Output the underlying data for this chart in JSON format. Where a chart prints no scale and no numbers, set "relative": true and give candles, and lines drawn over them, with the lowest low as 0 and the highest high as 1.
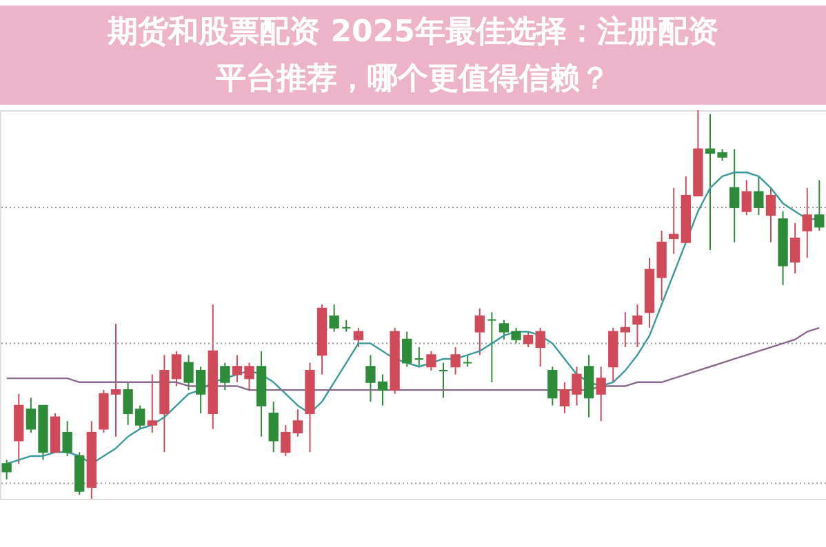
{
  "chart_data": {
    "type": "candlestick",
    "title": "期货和股票配资 2025年最佳选择：注册配资平台推荐，哪个更值得信赖？",
    "relative": true,
    "tick_labels": false,
    "ref_lines": [
      {
        "axis": "y",
        "value": 0.75,
        "color": "#999999",
        "line_style": "dotted"
      },
      {
        "axis": "y",
        "value": 0.4,
        "color": "#999999",
        "line_style": "dotted"
      },
      {
        "axis": "y",
        "value": 0.04,
        "color": "#999999",
        "line_style": "dotted"
      }
    ],
    "categories": [
      null,
      null,
      null,
      null,
      null,
      null,
      null,
      null,
      null,
      null,
      null,
      null,
      null,
      null,
      null,
      null,
      null,
      null,
      null,
      null,
      null,
      null,
      null,
      null,
      null,
      null,
      null,
      null,
      null,
      null,
      null,
      null,
      null,
      null,
      null,
      null,
      null,
      null,
      null,
      null,
      null,
      null,
      null,
      null,
      null,
      null,
      null,
      null,
      null,
      null,
      null,
      null,
      null,
      null,
      null,
      null,
      null,
      null,
      null,
      null,
      null,
      null,
      null,
      null,
      null,
      null,
      null,
      null
    ],
    "ohlc": [
      [
        0.09,
        0.1,
        0.05,
        0.07
      ],
      [
        0.15,
        0.27,
        0.09,
        0.24
      ],
      [
        0.23,
        0.26,
        0.17,
        0.18
      ],
      [
        0.24,
        0.24,
        0.1,
        0.12
      ],
      [
        0.12,
        0.22,
        0.12,
        0.21
      ],
      [
        0.17,
        0.2,
        0.11,
        0.12
      ],
      [
        0.11,
        0.12,
        0.01,
        0.02
      ],
      [
        0.03,
        0.2,
        0.0,
        0.17
      ],
      [
        0.18,
        0.28,
        0.17,
        0.27
      ],
      [
        0.27,
        0.45,
        0.16,
        0.28
      ],
      [
        0.28,
        0.3,
        0.19,
        0.22
      ],
      [
        0.23,
        0.24,
        0.18,
        0.19
      ],
      [
        0.19,
        0.32,
        0.17,
        0.2
      ],
      [
        0.22,
        0.37,
        0.12,
        0.33
      ],
      [
        0.31,
        0.38,
        0.29,
        0.37
      ],
      [
        0.35,
        0.37,
        0.28,
        0.3
      ],
      [
        0.33,
        0.34,
        0.22,
        0.27
      ],
      [
        0.22,
        0.5,
        0.18,
        0.38
      ],
      [
        0.34,
        0.35,
        0.28,
        0.3
      ],
      [
        0.32,
        0.37,
        0.3,
        0.34
      ],
      [
        0.31,
        0.35,
        0.28,
        0.34
      ],
      [
        0.34,
        0.38,
        0.16,
        0.24
      ],
      [
        0.22,
        0.25,
        0.12,
        0.15
      ],
      [
        0.12,
        0.19,
        0.11,
        0.17
      ],
      [
        0.17,
        0.23,
        0.16,
        0.2
      ],
      [
        0.22,
        0.35,
        0.12,
        0.33
      ],
      [
        0.37,
        0.5,
        0.32,
        0.49
      ],
      [
        0.47,
        0.5,
        0.43,
        0.44
      ],
      [
        0.44,
        0.46,
        0.43,
        0.44
      ],
      [
        0.41,
        0.44,
        0.39,
        0.43
      ],
      [
        0.34,
        0.37,
        0.25,
        0.3
      ],
      [
        0.3,
        0.32,
        0.24,
        0.28
      ],
      [
        0.28,
        0.44,
        0.27,
        0.43
      ],
      [
        0.41,
        0.43,
        0.34,
        0.35
      ],
      [
        0.36,
        0.39,
        0.34,
        0.36
      ],
      [
        0.34,
        0.38,
        0.33,
        0.37
      ],
      [
        0.33,
        0.35,
        0.26,
        0.33
      ],
      [
        0.34,
        0.39,
        0.32,
        0.37
      ],
      [
        0.35,
        0.37,
        0.34,
        0.35
      ],
      [
        0.43,
        0.49,
        0.37,
        0.47
      ],
      [
        0.46,
        0.48,
        0.3,
        0.46
      ],
      [
        0.45,
        0.46,
        0.41,
        0.43
      ],
      [
        0.43,
        0.44,
        0.4,
        0.41
      ],
      [
        0.4,
        0.43,
        0.39,
        0.42
      ],
      [
        0.39,
        0.44,
        0.34,
        0.43
      ],
      [
        0.33,
        0.34,
        0.24,
        0.26
      ],
      [
        0.24,
        0.3,
        0.22,
        0.28
      ],
      [
        0.27,
        0.34,
        0.24,
        0.32
      ],
      [
        0.34,
        0.37,
        0.21,
        0.26
      ],
      [
        0.27,
        0.34,
        0.2,
        0.31
      ],
      [
        0.34,
        0.44,
        0.3,
        0.43
      ],
      [
        0.43,
        0.48,
        0.39,
        0.44
      ],
      [
        0.45,
        0.5,
        0.39,
        0.47
      ],
      [
        0.48,
        0.62,
        0.44,
        0.59
      ],
      [
        0.57,
        0.69,
        0.51,
        0.66
      ],
      [
        0.67,
        0.8,
        0.63,
        0.68
      ],
      [
        0.66,
        0.83,
        0.66,
        0.78
      ],
      [
        0.78,
        1.0,
        0.78,
        0.9
      ],
      [
        0.9,
        0.99,
        0.64,
        0.89
      ],
      [
        0.89,
        0.9,
        0.87,
        0.88
      ],
      [
        0.8,
        0.9,
        0.66,
        0.75
      ],
      [
        0.74,
        0.82,
        0.73,
        0.79
      ],
      [
        0.79,
        0.83,
        0.73,
        0.75
      ],
      [
        0.73,
        0.8,
        0.66,
        0.78
      ],
      [
        0.72,
        0.74,
        0.55,
        0.6
      ],
      [
        0.61,
        0.71,
        0.58,
        0.67
      ],
      [
        0.69,
        0.8,
        0.62,
        0.73
      ],
      [
        0.73,
        0.82,
        0.69,
        0.7
      ]
    ],
    "colors": [
      "#2e8b3a",
      "#d04a5a",
      "#2e8b3a",
      "#2e8b3a",
      "#d04a5a",
      "#2e8b3a",
      "#2e8b3a",
      "#d04a5a",
      "#d04a5a",
      "#d04a5a",
      "#2e8b3a",
      "#2e8b3a",
      "#d04a5a",
      "#d04a5a",
      "#d04a5a",
      "#2e8b3a",
      "#2e8b3a",
      "#d04a5a",
      "#2e8b3a",
      "#d04a5a",
      "#d04a5a",
      "#2e8b3a",
      "#2e8b3a",
      "#d04a5a",
      "#d04a5a",
      "#d04a5a",
      "#d04a5a",
      "#2e8b3a",
      "#2e8b3a",
      "#d04a5a",
      "#2e8b3a",
      "#2e8b3a",
      "#d04a5a",
      "#2e8b3a",
      "#2e8b3a",
      "#d04a5a",
      "#2e8b3a",
      "#d04a5a",
      "#2e8b3a",
      "#d04a5a",
      "#2e8b3a",
      "#2e8b3a",
      "#2e8b3a",
      "#d04a5a",
      "#d04a5a",
      "#2e8b3a",
      "#d04a5a",
      "#d04a5a",
      "#2e8b3a",
      "#d04a5a",
      "#d04a5a",
      "#d04a5a",
      "#d04a5a",
      "#d04a5a",
      "#d04a5a",
      "#d04a5a",
      "#d04a5a",
      "#d04a5a",
      "#2e8b3a",
      "#2e8b3a",
      "#2e8b3a",
      "#d04a5a",
      "#2e8b3a",
      "#d04a5a",
      "#2e8b3a",
      "#d04a5a",
      "#d04a5a",
      "#2e8b3a"
    ],
    "series": [
      {
        "type": "line",
        "color": "#3a9a9a",
        "values": [
          0.09,
          0.1,
          0.11,
          0.11,
          0.12,
          0.12,
          0.11,
          0.09,
          0.11,
          0.13,
          0.16,
          0.18,
          0.19,
          0.21,
          0.24,
          0.27,
          0.28,
          0.3,
          0.31,
          0.32,
          0.33,
          0.32,
          0.3,
          0.27,
          0.24,
          0.22,
          0.25,
          0.3,
          0.35,
          0.4,
          0.4,
          0.38,
          0.36,
          0.35,
          0.34,
          0.35,
          0.36,
          0.36,
          0.37,
          0.38,
          0.4,
          0.42,
          0.43,
          0.43,
          0.42,
          0.4,
          0.36,
          0.32,
          0.3,
          0.29,
          0.3,
          0.33,
          0.37,
          0.42,
          0.5,
          0.58,
          0.66,
          0.74,
          0.8,
          0.83,
          0.84,
          0.84,
          0.83,
          0.8,
          0.76,
          0.74,
          0.72,
          0.72
        ]
      },
      {
        "type": "line",
        "color": "#8a6a8a",
        "values": [
          0.31,
          0.31,
          0.31,
          0.31,
          0.31,
          0.31,
          0.3,
          0.3,
          0.3,
          0.3,
          0.3,
          0.3,
          0.3,
          0.3,
          0.3,
          0.29,
          0.29,
          0.29,
          0.29,
          0.29,
          0.28,
          0.28,
          0.28,
          0.28,
          0.28,
          0.28,
          0.28,
          0.28,
          0.28,
          0.28,
          0.28,
          0.28,
          0.28,
          0.28,
          0.28,
          0.28,
          0.28,
          0.28,
          0.28,
          0.28,
          0.28,
          0.28,
          0.28,
          0.28,
          0.28,
          0.28,
          0.28,
          0.28,
          0.28,
          0.29,
          0.29,
          0.29,
          0.3,
          0.3,
          0.3,
          0.31,
          0.32,
          0.33,
          0.34,
          0.35,
          0.36,
          0.37,
          0.38,
          0.39,
          0.4,
          0.41,
          0.43,
          0.44
        ]
      }
    ]
  }
}
